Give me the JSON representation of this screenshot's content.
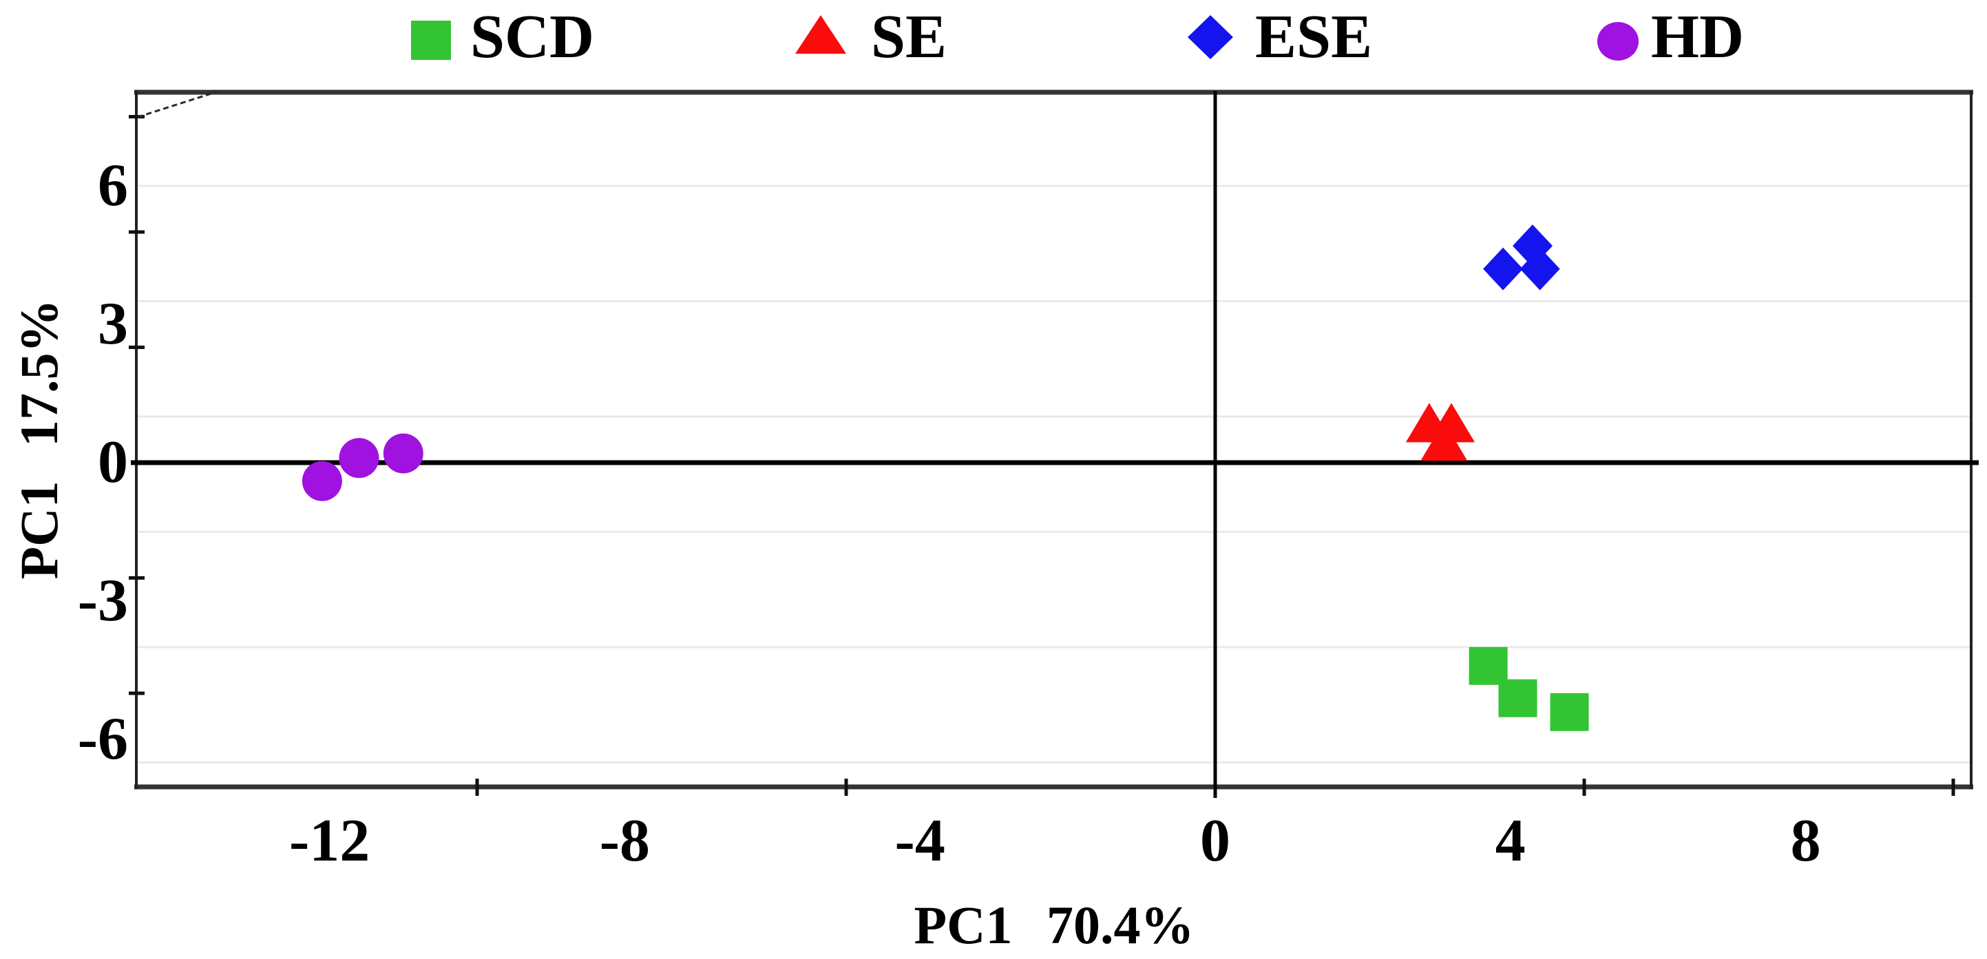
{
  "figure": {
    "kind": "PCA score scatter plot"
  },
  "legend": {
    "items": [
      {
        "label": "SCD",
        "marker": "square",
        "color": "#33C433"
      },
      {
        "label": "SE",
        "marker": "triangle",
        "color": "#FA0C0C"
      },
      {
        "label": "ESE",
        "marker": "diamond",
        "color": "#1414EF"
      },
      {
        "label": "HD",
        "marker": "circle",
        "color": "#A012DF"
      }
    ]
  },
  "axes": {
    "x_title": "PC1 70.4%",
    "y_title": "PC1 17.5%"
  },
  "colors": {
    "frame": "#333333",
    "zero_lines": "#000000",
    "gridline": "#e9e9e9",
    "tick": "#111111"
  },
  "chart_data": {
    "type": "scatter",
    "title": "",
    "xlabel": "PC1 70.4%",
    "ylabel": "PC1 17.5%",
    "xlim": [
      -14.6,
      10.2
    ],
    "ylim": [
      -7.0,
      8.0
    ],
    "x_tick_labels": [
      -12,
      -8,
      -4,
      0,
      4,
      8
    ],
    "y_tick_labels": [
      6,
      3,
      0,
      -3,
      -6
    ],
    "x_tick_marks": [
      -10,
      -5,
      5,
      10
    ],
    "y_tick_marks": [
      7.5,
      5,
      2.5,
      -2.5,
      -5
    ],
    "y_gridlines": [
      6,
      3.5,
      1,
      -1.5,
      -4,
      -6.5
    ],
    "grid": "horizontal",
    "legend_position": "top",
    "series": [
      {
        "name": "SCD",
        "marker": "square",
        "color": "#33C433",
        "points": [
          [
            3.7,
            -4.4
          ],
          [
            4.1,
            -5.1
          ],
          [
            4.8,
            -5.4
          ]
        ]
      },
      {
        "name": "SE",
        "marker": "triangle",
        "color": "#FA0C0C",
        "points": [
          [
            2.9,
            0.8
          ],
          [
            3.2,
            0.8
          ],
          [
            3.1,
            0.4
          ]
        ]
      },
      {
        "name": "ESE",
        "marker": "diamond",
        "color": "#1414EF",
        "points": [
          [
            3.9,
            4.2
          ],
          [
            4.3,
            4.7
          ],
          [
            4.4,
            4.2
          ]
        ]
      },
      {
        "name": "HD",
        "marker": "circle",
        "color": "#A012DF",
        "points": [
          [
            -12.1,
            -0.4
          ],
          [
            -11.6,
            0.1
          ],
          [
            -11.0,
            0.2
          ]
        ]
      }
    ]
  }
}
